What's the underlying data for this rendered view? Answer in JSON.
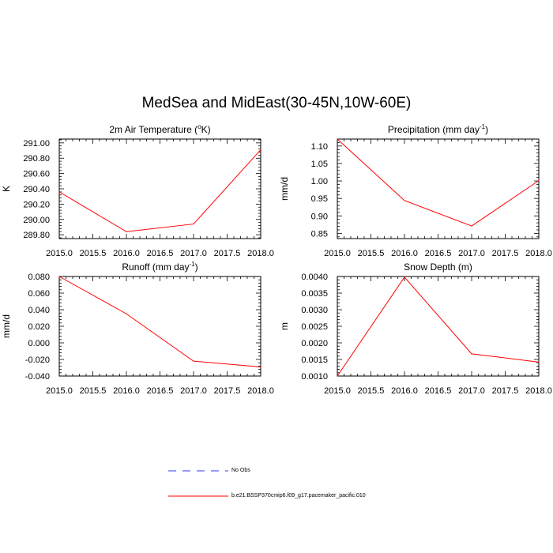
{
  "title": "MedSea and MidEast(30-45N,10W-60E)",
  "chart_data": [
    {
      "type": "line",
      "title": "2m Air Temperature (°K)",
      "title_main": "2m Air Temperature (",
      "title_sup": "o",
      "title_tail": "K)",
      "ylabel": "K",
      "xlim": [
        2015.0,
        2018.0
      ],
      "ylim": [
        289.75,
        291.05
      ],
      "xticks": [
        "2015.0",
        "2015.5",
        "2016.0",
        "2016.5",
        "2017.0",
        "2017.5",
        "2018.0"
      ],
      "yticks": [
        "289.80",
        "290.00",
        "290.20",
        "290.40",
        "290.60",
        "290.80",
        "291.00"
      ],
      "x": [
        2015,
        2016,
        2017,
        2018
      ],
      "series": [
        {
          "name": "b.e21.BSSP370cmip6.f09_g17.pacemaker_pacific.010",
          "color": "#ff0000",
          "values": [
            290.36,
            289.84,
            289.94,
            290.91
          ]
        }
      ]
    },
    {
      "type": "line",
      "title": "Precipitation (mm day-1)",
      "title_main": "Precipitation (mm day",
      "title_sup": "-1",
      "title_tail": ")",
      "ylabel": "mm/d",
      "xlim": [
        2015.0,
        2018.0
      ],
      "ylim": [
        0.835,
        1.12
      ],
      "xticks": [
        "2015.0",
        "2015.5",
        "2016.0",
        "2016.5",
        "2017.0",
        "2017.5",
        "2018.0"
      ],
      "yticks": [
        "0.85",
        "0.90",
        "0.95",
        "1.00",
        "1.05",
        "1.10"
      ],
      "x": [
        2015,
        2016,
        2017,
        2018
      ],
      "series": [
        {
          "name": "b.e21.BSSP370cmip6.f09_g17.pacemaker_pacific.010",
          "color": "#ff0000",
          "values": [
            1.12,
            0.944,
            0.871,
            1.001
          ]
        }
      ]
    },
    {
      "type": "line",
      "title": "Runoff (mm day-1)",
      "title_main": "Runoff (mm day",
      "title_sup": "-1",
      "title_tail": ")",
      "ylabel": "mm/d",
      "xlim": [
        2015.0,
        2018.0
      ],
      "ylim": [
        -0.04,
        0.08
      ],
      "xticks": [
        "2015.0",
        "2015.5",
        "2016.0",
        "2016.5",
        "2017.0",
        "2017.5",
        "2018.0"
      ],
      "yticks": [
        "-0.040",
        "-0.020",
        "0.000",
        "0.020",
        "0.040",
        "0.060",
        "0.080"
      ],
      "x": [
        2015,
        2016,
        2017,
        2018
      ],
      "series": [
        {
          "name": "b.e21.BSSP370cmip6.f09_g17.pacemaker_pacific.010",
          "color": "#ff0000",
          "values": [
            0.08,
            0.035,
            -0.022,
            -0.029
          ]
        }
      ]
    },
    {
      "type": "line",
      "title": "Snow Depth (m)",
      "title_main": "Snow Depth (m)",
      "title_sup": "",
      "title_tail": "",
      "ylabel": "m",
      "xlim": [
        2015.0,
        2018.0
      ],
      "ylim": [
        0.001,
        0.004
      ],
      "xticks": [
        "2015.0",
        "2015.5",
        "2016.0",
        "2016.5",
        "2017.0",
        "2017.5",
        "2018.0"
      ],
      "yticks": [
        "0.0010",
        "0.0015",
        "0.0020",
        "0.0025",
        "0.0030",
        "0.0035",
        "0.0040"
      ],
      "x": [
        2015,
        2016,
        2017,
        2018
      ],
      "series": [
        {
          "name": "b.e21.BSSP370cmip6.f09_g17.pacemaker_pacific.010",
          "color": "#ff0000",
          "values": [
            0.001,
            0.00398,
            0.00167,
            0.00142
          ]
        }
      ]
    }
  ],
  "legend": [
    {
      "label": "No Obs",
      "color": "#3333ff",
      "style": "dashed"
    },
    {
      "label": "b.e21.BSSP370cmip6.f09_g17.pacemaker_pacific.010",
      "color": "#ff0000",
      "style": "solid"
    }
  ]
}
